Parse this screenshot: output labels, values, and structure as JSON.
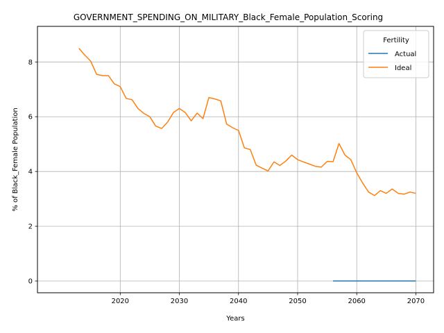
{
  "chart_data": {
    "type": "line",
    "title": "GOVERNMENT_SPENDING_ON_MILITARY_Black_Female_Population_Scoring",
    "xlabel": "Years",
    "ylabel": "% of Black_Female Population",
    "xlim": [
      2006,
      2073
    ],
    "ylim": [
      -0.43,
      9.3
    ],
    "x_ticks": [
      2020,
      2030,
      2040,
      2050,
      2060,
      2070
    ],
    "y_ticks": [
      0,
      2,
      4,
      6,
      8
    ],
    "grid": true,
    "legend": {
      "title": "Fertility",
      "placement": "top-right"
    },
    "series": [
      {
        "name": "Actual",
        "color": "#1f77b4",
        "x": [
          2056,
          2057,
          2058,
          2059,
          2060,
          2061,
          2062,
          2063,
          2064,
          2065,
          2066,
          2067,
          2068,
          2069,
          2070
        ],
        "values": [
          0,
          0,
          0,
          0,
          0,
          0,
          0,
          0,
          0,
          0,
          0,
          0,
          0,
          0,
          0
        ]
      },
      {
        "name": "Ideal",
        "color": "#ff7f0e",
        "x": [
          2013,
          2014,
          2015,
          2016,
          2017,
          2018,
          2019,
          2020,
          2021,
          2022,
          2023,
          2024,
          2025,
          2026,
          2027,
          2028,
          2029,
          2030,
          2031,
          2032,
          2033,
          2034,
          2035,
          2036,
          2037,
          2038,
          2039,
          2040,
          2041,
          2042,
          2043,
          2044,
          2045,
          2046,
          2047,
          2048,
          2049,
          2050,
          2051,
          2052,
          2053,
          2054,
          2055,
          2056,
          2057,
          2058,
          2059,
          2060,
          2061,
          2062,
          2063,
          2064,
          2065,
          2066,
          2067,
          2068,
          2069,
          2070
        ],
        "values": [
          8.5,
          8.25,
          8.03,
          7.55,
          7.5,
          7.5,
          7.2,
          7.1,
          6.67,
          6.62,
          6.3,
          6.12,
          6.0,
          5.66,
          5.57,
          5.8,
          6.15,
          6.3,
          6.15,
          5.85,
          6.13,
          5.93,
          6.7,
          6.65,
          6.58,
          5.73,
          5.6,
          5.5,
          4.86,
          4.8,
          4.23,
          4.12,
          4.02,
          4.35,
          4.22,
          4.38,
          4.6,
          4.43,
          4.35,
          4.27,
          4.19,
          4.16,
          4.37,
          4.36,
          5.02,
          4.6,
          4.43,
          3.95,
          3.58,
          3.25,
          3.12,
          3.3,
          3.2,
          3.36,
          3.2,
          3.17,
          3.25,
          3.2
        ]
      }
    ]
  }
}
